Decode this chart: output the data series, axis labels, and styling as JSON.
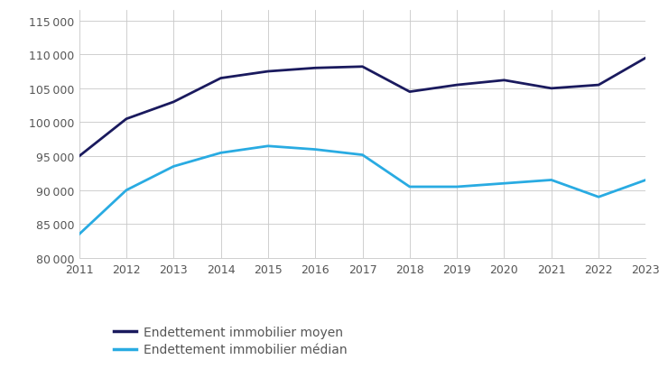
{
  "years": [
    2011,
    2012,
    2013,
    2014,
    2015,
    2016,
    2017,
    2018,
    2019,
    2020,
    2021,
    2022,
    2023
  ],
  "moyen": [
    95000,
    100500,
    103000,
    106500,
    107500,
    108000,
    108200,
    104500,
    105500,
    106200,
    105000,
    105500,
    109500
  ],
  "median": [
    83500,
    90000,
    93500,
    95500,
    96500,
    96000,
    95200,
    90500,
    90500,
    91000,
    91500,
    89000,
    91500
  ],
  "moyen_color": "#1a1a5e",
  "median_color": "#29abe2",
  "ylim_min": 80000,
  "ylim_max": 116500,
  "yticks": [
    80000,
    85000,
    90000,
    95000,
    100000,
    105000,
    110000,
    115000
  ],
  "ytick_labels": [
    "80 000",
    "85 000",
    "90 000",
    "95 000",
    "100 000",
    "105 000",
    "110 000",
    "115 000"
  ],
  "legend_moyen": "Endettement immobilier moyen",
  "legend_median": "Endettement immobilier médian",
  "line_width": 2.0,
  "background_color": "#ffffff",
  "grid_color": "#c8c8c8",
  "tick_color": "#555555",
  "legend_fontsize": 10,
  "tick_fontsize": 9
}
